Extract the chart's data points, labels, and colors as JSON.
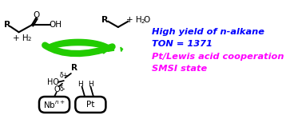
{
  "bg_color": "#ffffff",
  "text_line1": "High yield of n-alkane",
  "text_line2": "TON = 1371",
  "text_line3": "Pt/Lewis acid cooperation",
  "text_line4": "SMSI state",
  "color_blue": "#0000ff",
  "color_magenta": "#ff00ff",
  "color_purple": "#8800cc",
  "arrow_green": "#22cc00",
  "line_color": "#000000",
  "fig_width": 3.78,
  "fig_height": 1.64,
  "dpi": 100
}
